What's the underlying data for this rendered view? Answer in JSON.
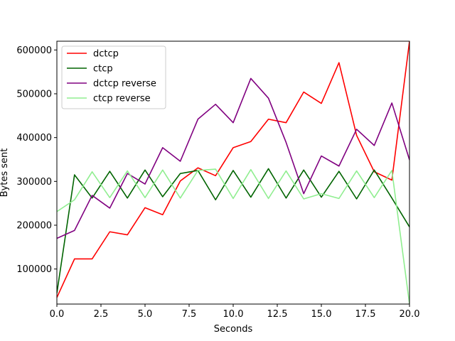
{
  "chart_data": {
    "type": "line",
    "xlabel": "Seconds",
    "ylabel": "Bytes sent",
    "xlim": [
      0,
      20
    ],
    "ylim": [
      20000,
      620000
    ],
    "xticks": [
      "0.0",
      "2.5",
      "5.0",
      "7.5",
      "10.0",
      "12.5",
      "15.0",
      "17.5",
      "20.0"
    ],
    "xtick_values": [
      0,
      2.5,
      5,
      7.5,
      10,
      12.5,
      15,
      17.5,
      20
    ],
    "yticks": [
      "100000",
      "200000",
      "300000",
      "400000",
      "500000",
      "600000"
    ],
    "ytick_values": [
      100000,
      200000,
      300000,
      400000,
      500000,
      600000
    ],
    "grid": false,
    "legend_position": "top-left",
    "x": [
      0,
      1,
      2,
      3,
      4,
      5,
      6,
      7,
      8,
      9,
      10,
      11,
      12,
      13,
      14,
      15,
      16,
      17,
      18,
      19,
      20
    ],
    "series": [
      {
        "name": "dctcp",
        "color": "#ff0000",
        "values": [
          35000,
          123000,
          123000,
          185000,
          178000,
          240000,
          224000,
          301000,
          331000,
          313000,
          377000,
          391000,
          442000,
          434000,
          504000,
          478000,
          571000,
          405000,
          322000,
          303000,
          620000
        ]
      },
      {
        "name": "ctcp",
        "color": "#006400",
        "values": [
          45000,
          315000,
          262000,
          323000,
          262000,
          326000,
          265000,
          318000,
          325000,
          258000,
          325000,
          264000,
          329000,
          262000,
          326000,
          264000,
          323000,
          260000,
          326000,
          262000,
          196000
        ]
      },
      {
        "name": "dctcp reverse",
        "color": "#800080",
        "values": [
          170000,
          188000,
          268000,
          239000,
          318000,
          294000,
          377000,
          346000,
          442000,
          476000,
          434000,
          535000,
          490000,
          389000,
          272000,
          358000,
          335000,
          419000,
          382000,
          479000,
          349000
        ]
      },
      {
        "name": "ctcp reverse",
        "color": "#90ee90",
        "values": [
          231000,
          258000,
          322000,
          263000,
          324000,
          263000,
          326000,
          262000,
          325000,
          328000,
          261000,
          327000,
          261000,
          324000,
          260000,
          272000,
          261000,
          324000,
          263000,
          325000,
          20000
        ]
      }
    ]
  }
}
